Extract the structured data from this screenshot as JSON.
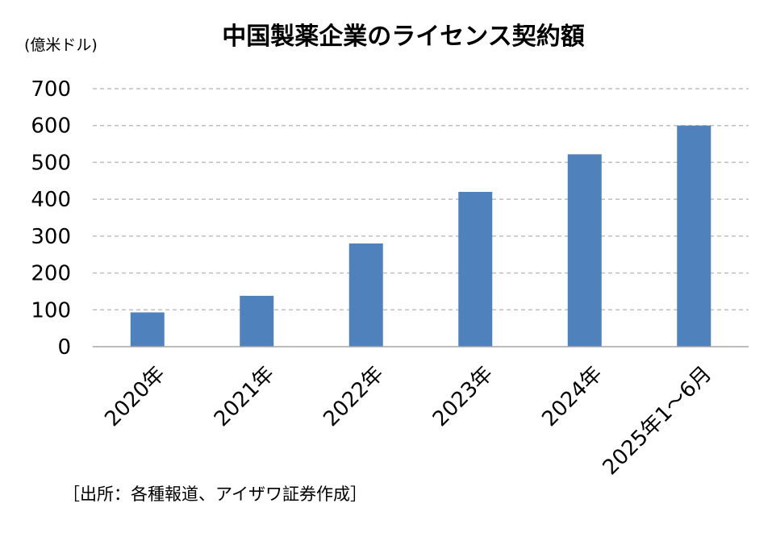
{
  "chart_data": {
    "type": "bar",
    "title": "中国製薬企業のライセンス契約額",
    "unit_label": "(億米ドル)",
    "categories": [
      "2020年",
      "2021年",
      "2022年",
      "2023年",
      "2024年",
      "2025年1～6月"
    ],
    "values": [
      93,
      138,
      280,
      420,
      522,
      600
    ],
    "ylim": [
      0,
      700
    ],
    "yticks": [
      "0",
      "100",
      "200",
      "300",
      "400",
      "500",
      "600",
      "700"
    ],
    "grid": true,
    "bar_color": "#4f81bd",
    "grid_color": "#bfbfbf"
  },
  "source": "［出所：各種報道、アイザワ証券作成］"
}
